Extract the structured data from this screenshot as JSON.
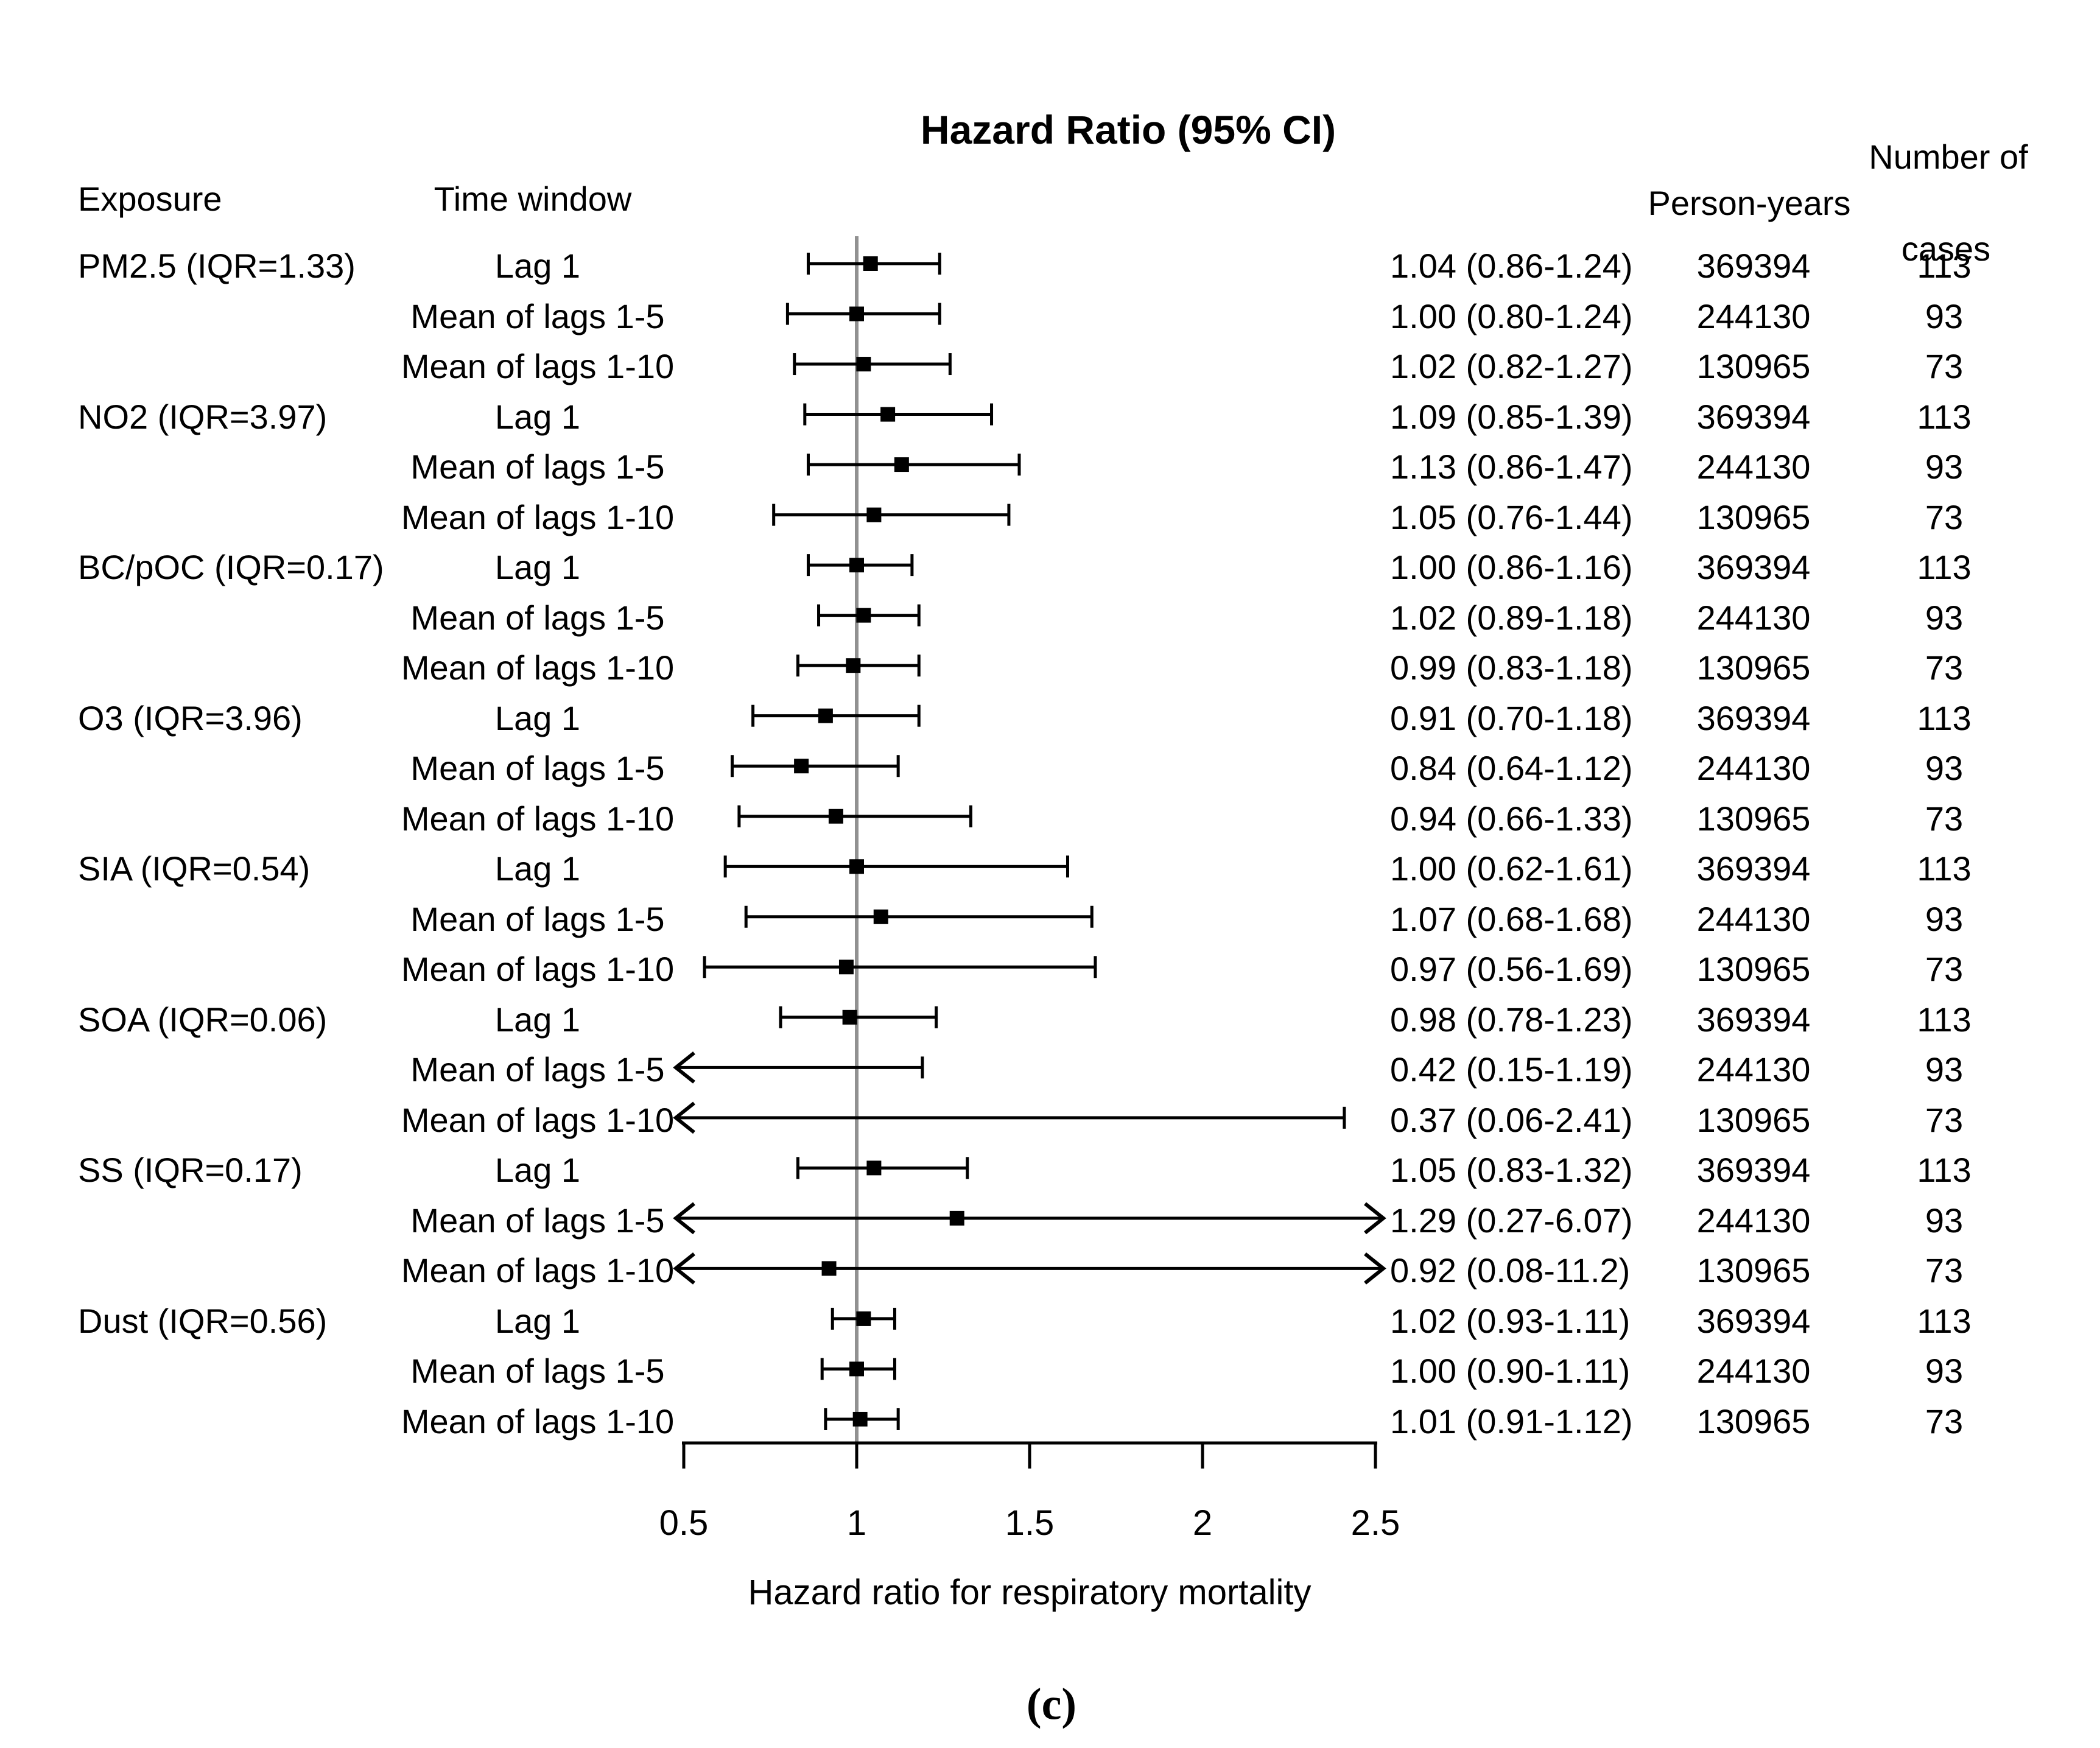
{
  "figure": {
    "title": "Hazard Ratio (95% CI)",
    "caption": "(c)"
  },
  "columns": {
    "exposure": "Exposure",
    "time_window": "Time window",
    "person_years": "Person-years",
    "cases_line1": "Number of",
    "cases_line2": "cases"
  },
  "chart_data": {
    "type": "forest",
    "title": "Hazard Ratio (95% CI)",
    "xlabel": "Hazard ratio for respiratory mortality",
    "xlim": [
      0.5,
      2.5
    ],
    "reference_line": 1,
    "grid": false,
    "x_ticks": [
      {
        "v": 0.5,
        "label": "0.5"
      },
      {
        "v": 1,
        "label": "1"
      },
      {
        "v": 1.5,
        "label": "1.5"
      },
      {
        "v": 2,
        "label": "2"
      },
      {
        "v": 2.5,
        "label": "2.5"
      }
    ],
    "colors": {
      "marker": "#000000",
      "ci_line": "#000000",
      "reference_line": "#919191",
      "axis": "#000000"
    },
    "rows": [
      {
        "exposure": "PM2.5 (IQR=1.33)",
        "time_window": "Lag 1",
        "hr_text": "1.04 (0.86-1.24)",
        "est": 1.04,
        "lo": 0.86,
        "hi": 1.24,
        "person_years": "369394",
        "cases": "113"
      },
      {
        "exposure": "",
        "time_window": "Mean of lags 1-5",
        "hr_text": "1.00 (0.80-1.24)",
        "est": 1.0,
        "lo": 0.8,
        "hi": 1.24,
        "person_years": "244130",
        "cases": "93"
      },
      {
        "exposure": "",
        "time_window": "Mean of lags 1-10",
        "hr_text": "1.02 (0.82-1.27)",
        "est": 1.02,
        "lo": 0.82,
        "hi": 1.27,
        "person_years": "130965",
        "cases": "73"
      },
      {
        "exposure": "NO2 (IQR=3.97)",
        "time_window": "Lag 1",
        "hr_text": "1.09 (0.85-1.39)",
        "est": 1.09,
        "lo": 0.85,
        "hi": 1.39,
        "person_years": "369394",
        "cases": "113"
      },
      {
        "exposure": "",
        "time_window": "Mean of lags 1-5",
        "hr_text": "1.13 (0.86-1.47)",
        "est": 1.13,
        "lo": 0.86,
        "hi": 1.47,
        "person_years": "244130",
        "cases": "93"
      },
      {
        "exposure": "",
        "time_window": "Mean of lags 1-10",
        "hr_text": "1.05 (0.76-1.44)",
        "est": 1.05,
        "lo": 0.76,
        "hi": 1.44,
        "person_years": "130965",
        "cases": "73"
      },
      {
        "exposure": "BC/pOC (IQR=0.17)",
        "time_window": "Lag 1",
        "hr_text": "1.00 (0.86-1.16)",
        "est": 1.0,
        "lo": 0.86,
        "hi": 1.16,
        "person_years": "369394",
        "cases": "113"
      },
      {
        "exposure": "",
        "time_window": "Mean of lags 1-5",
        "hr_text": "1.02 (0.89-1.18)",
        "est": 1.02,
        "lo": 0.89,
        "hi": 1.18,
        "person_years": "244130",
        "cases": "93"
      },
      {
        "exposure": "",
        "time_window": "Mean of lags 1-10",
        "hr_text": "0.99 (0.83-1.18)",
        "est": 0.99,
        "lo": 0.83,
        "hi": 1.18,
        "person_years": "130965",
        "cases": "73"
      },
      {
        "exposure": "O3 (IQR=3.96)",
        "time_window": "Lag 1",
        "hr_text": "0.91 (0.70-1.18)",
        "est": 0.91,
        "lo": 0.7,
        "hi": 1.18,
        "person_years": "369394",
        "cases": "113"
      },
      {
        "exposure": "",
        "time_window": "Mean of lags 1-5",
        "hr_text": "0.84 (0.64-1.12)",
        "est": 0.84,
        "lo": 0.64,
        "hi": 1.12,
        "person_years": "244130",
        "cases": "93"
      },
      {
        "exposure": "",
        "time_window": "Mean of lags 1-10",
        "hr_text": "0.94 (0.66-1.33)",
        "est": 0.94,
        "lo": 0.66,
        "hi": 1.33,
        "person_years": "130965",
        "cases": "73"
      },
      {
        "exposure": "SIA (IQR=0.54)",
        "time_window": "Lag 1",
        "hr_text": "1.00 (0.62-1.61)",
        "est": 1.0,
        "lo": 0.62,
        "hi": 1.61,
        "person_years": "369394",
        "cases": "113"
      },
      {
        "exposure": "",
        "time_window": "Mean of lags 1-5",
        "hr_text": "1.07 (0.68-1.68)",
        "est": 1.07,
        "lo": 0.68,
        "hi": 1.68,
        "person_years": "244130",
        "cases": "93"
      },
      {
        "exposure": "",
        "time_window": "Mean of lags 1-10",
        "hr_text": "0.97 (0.56-1.69)",
        "est": 0.97,
        "lo": 0.56,
        "hi": 1.69,
        "person_years": "130965",
        "cases": "73"
      },
      {
        "exposure": "SOA (IQR=0.06)",
        "time_window": "Lag 1",
        "hr_text": "0.98 (0.78-1.23)",
        "est": 0.98,
        "lo": 0.78,
        "hi": 1.23,
        "person_years": "369394",
        "cases": "113"
      },
      {
        "exposure": "",
        "time_window": "Mean of lags 1-5",
        "hr_text": "0.42 (0.15-1.19)",
        "est": 0.42,
        "lo": 0.15,
        "hi": 1.19,
        "person_years": "244130",
        "cases": "93"
      },
      {
        "exposure": "",
        "time_window": "Mean of lags 1-10",
        "hr_text": "0.37 (0.06-2.41)",
        "est": 0.37,
        "lo": 0.06,
        "hi": 2.41,
        "person_years": "130965",
        "cases": "73"
      },
      {
        "exposure": "SS (IQR=0.17)",
        "time_window": "Lag 1",
        "hr_text": "1.05 (0.83-1.32)",
        "est": 1.05,
        "lo": 0.83,
        "hi": 1.32,
        "person_years": "369394",
        "cases": "113"
      },
      {
        "exposure": "",
        "time_window": "Mean of lags 1-5",
        "hr_text": "1.29 (0.27-6.07)",
        "est": 1.29,
        "lo": 0.27,
        "hi": 6.07,
        "person_years": "244130",
        "cases": "93"
      },
      {
        "exposure": "",
        "time_window": "Mean of lags 1-10",
        "hr_text": "0.92 (0.08-11.2)",
        "est": 0.92,
        "lo": 0.08,
        "hi": 11.2,
        "person_years": "130965",
        "cases": "73"
      },
      {
        "exposure": "Dust (IQR=0.56)",
        "time_window": "Lag 1",
        "hr_text": "1.02 (0.93-1.11)",
        "est": 1.02,
        "lo": 0.93,
        "hi": 1.11,
        "person_years": "369394",
        "cases": "113"
      },
      {
        "exposure": "",
        "time_window": "Mean of lags 1-5",
        "hr_text": "1.00 (0.90-1.11)",
        "est": 1.0,
        "lo": 0.9,
        "hi": 1.11,
        "person_years": "244130",
        "cases": "93"
      },
      {
        "exposure": "",
        "time_window": "Mean of lags 1-10",
        "hr_text": "1.01 (0.91-1.12)",
        "est": 1.01,
        "lo": 0.91,
        "hi": 1.12,
        "person_years": "130965",
        "cases": "73"
      }
    ]
  }
}
